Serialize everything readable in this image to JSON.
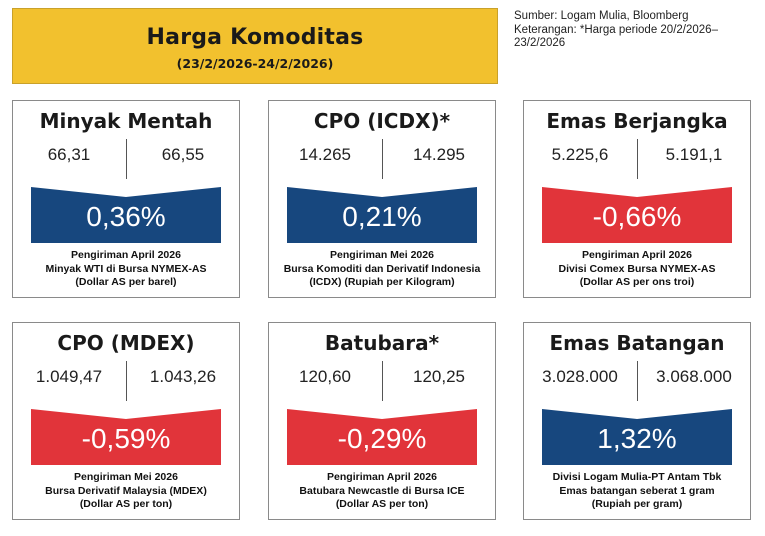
{
  "header": {
    "title": "Harga Komoditas",
    "period": "(23/2/2026-24/2/2026)"
  },
  "source": {
    "line1": "Sumber: Logam Mulia, Bloomberg",
    "line2": "Keterangan: *Harga periode 20/2/2026–",
    "line3": "23/2/2026"
  },
  "colors": {
    "up": "#17477e",
    "down": "#e1343a",
    "header_bg": "#f2c12e"
  },
  "cards": [
    {
      "name": "Minyak Mentah",
      "value_prev": "66,31",
      "value_curr": "66,55",
      "change": "0,36%",
      "direction": "up",
      "note1": "Pengiriman April 2026",
      "note2": "Minyak WTI di Bursa NYMEX-AS",
      "note3": "(Dollar AS per barel)"
    },
    {
      "name": "CPO (ICDX)*",
      "value_prev": "14.265",
      "value_curr": "14.295",
      "change": "0,21%",
      "direction": "up",
      "note1": "Pengiriman Mei 2026",
      "note2": "Bursa Komoditi dan Derivatif Indonesia",
      "note3": "(ICDX) (Rupiah per Kilogram)"
    },
    {
      "name": "Emas Berjangka",
      "value_prev": "5.225,6",
      "value_curr": "5.191,1",
      "change": "-0,66%",
      "direction": "down",
      "note1": "Pengiriman April 2026",
      "note2": "Divisi Comex Bursa NYMEX-AS",
      "note3": "(Dollar AS per ons troi)"
    },
    {
      "name": "CPO (MDEX)",
      "value_prev": "1.049,47",
      "value_curr": "1.043,26",
      "change": "-0,59%",
      "direction": "down",
      "note1": "Pengiriman Mei 2026",
      "note2": "Bursa Derivatif Malaysia (MDEX)",
      "note3": "(Dollar AS per ton)"
    },
    {
      "name": "Batubara*",
      "value_prev": "120,60",
      "value_curr": "120,25",
      "change": "-0,29%",
      "direction": "down",
      "note1": "Pengiriman April 2026",
      "note2": "Batubara Newcastle di Bursa ICE",
      "note3": "(Dollar AS per ton)"
    },
    {
      "name": "Emas Batangan",
      "value_prev": "3.028.000",
      "value_curr": "3.068.000",
      "change": "1,32%",
      "direction": "up",
      "note1": "Divisi Logam Mulia-PT Antam Tbk",
      "note2": "Emas batangan seberat 1 gram",
      "note3": "(Rupiah per gram)"
    }
  ]
}
